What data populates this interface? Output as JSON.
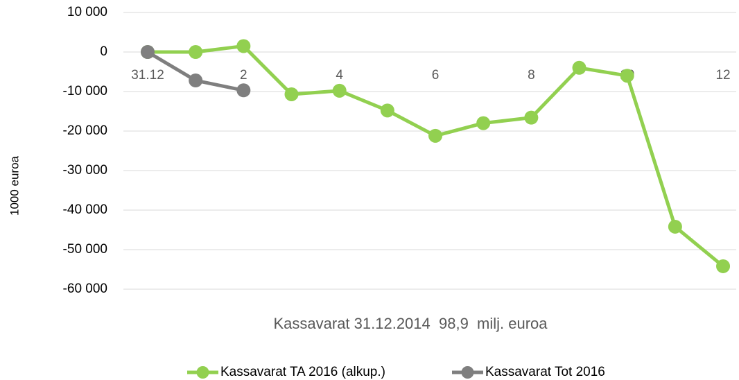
{
  "chart_data": {
    "type": "line",
    "y_label": "1000 euroa",
    "annotation": "Kassavarat 31.12.2014  98,9  milj. euroa",
    "categories": [
      "31.12",
      null,
      "2",
      null,
      "4",
      null,
      "6",
      null,
      "8",
      null,
      "10",
      null,
      "12"
    ],
    "series": [
      {
        "name": "Kassavarat TA 2016 (alkup.)",
        "color": "#92d050",
        "values": [
          0,
          0,
          1500,
          -10700,
          -9800,
          -14800,
          -21200,
          -18000,
          -16600,
          -4000,
          -6000,
          -44200,
          -54200
        ]
      },
      {
        "name": "Kassavarat Tot 2016",
        "color": "#7f7f7f",
        "values": [
          0,
          -7200,
          -9700,
          null,
          null,
          null,
          null,
          null,
          null,
          null,
          null,
          null,
          null
        ]
      }
    ],
    "ylim": [
      -60000,
      10000
    ],
    "yticks": [
      {
        "value": -60000,
        "label": "-60 000"
      },
      {
        "value": -50000,
        "label": "-50 000"
      },
      {
        "value": -40000,
        "label": "-40 000"
      },
      {
        "value": -30000,
        "label": "-30 000"
      },
      {
        "value": -20000,
        "label": "-20 000"
      },
      {
        "value": -10000,
        "label": "-10 000"
      },
      0,
      {
        "value": 10000,
        "label": "10 000"
      }
    ],
    "grid": true,
    "legend": "bottom"
  }
}
